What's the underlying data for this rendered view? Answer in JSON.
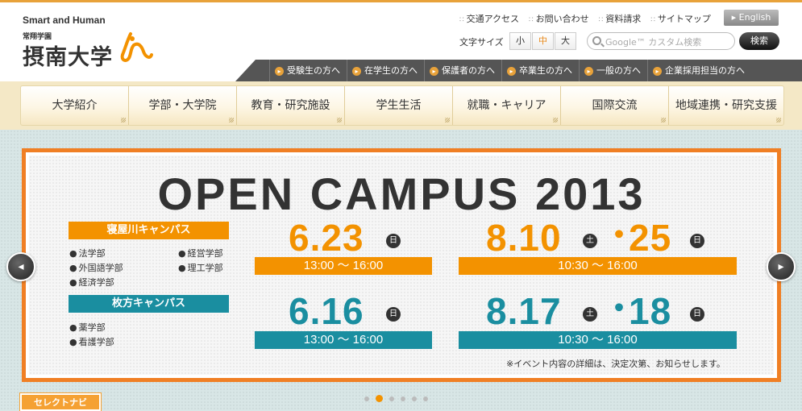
{
  "header": {
    "brand_en": "Smart and Human",
    "group_name": "常翔学園",
    "university_name": "摂南大学",
    "utility_links": [
      "交通アクセス",
      "お問い合わせ",
      "資料請求",
      "サイトマップ"
    ],
    "english_label": "English",
    "font_size": {
      "label": "文字サイズ",
      "options": [
        "小",
        "中",
        "大"
      ],
      "selected": "中"
    },
    "search": {
      "placeholder": "Google™ カスタム検索",
      "button": "検索"
    },
    "audience_links": [
      "受験生の方へ",
      "在学生の方へ",
      "保護者の方へ",
      "卒業生の方へ",
      "一般の方へ",
      "企業採用担当の方へ"
    ]
  },
  "global_nav": [
    "大学紹介",
    "学部・大学院",
    "教育・研究施設",
    "学生生活",
    "就職・キャリア",
    "国際交流",
    "地域連携・研究支援"
  ],
  "hero": {
    "title": "OPEN CAMPUS 2013",
    "campuses": [
      {
        "name": "寝屋川キャンパス",
        "color": "#f39200",
        "depts": [
          "法学部",
          "外国語学部",
          "経済学部",
          "経営学部",
          "理工学部"
        ]
      },
      {
        "name": "枚方キャンパス",
        "color": "#1a8ea0",
        "depts": [
          "薬学部",
          "看護学部"
        ]
      }
    ],
    "events": [
      {
        "date": "6.23",
        "day": "日",
        "time": "13:00 ～ 16:00"
      },
      {
        "date": "8.10",
        "day1": "土",
        "sep": "・",
        "date2": "25",
        "day2": "日",
        "time": "10:30 ～ 16:00"
      },
      {
        "date": "6.16",
        "day": "日",
        "time": "13:00 ～ 16:00"
      },
      {
        "date": "8.17",
        "day1": "土",
        "sep": "・",
        "date2": "18",
        "day2": "日",
        "time": "10:30 ～ 16:00"
      }
    ],
    "note": "※イベント内容の詳細は、決定次第、お知らせします。",
    "colors": {
      "frame": "#f07f24",
      "orange": "#f39200",
      "teal": "#1a8ea0"
    }
  },
  "carousel": {
    "prev_icon": "prev-arrow-icon",
    "next_icon": "next-arrow-icon",
    "slide_count": 6,
    "active_index": 1
  },
  "footer_tab": "セレクトナビ"
}
